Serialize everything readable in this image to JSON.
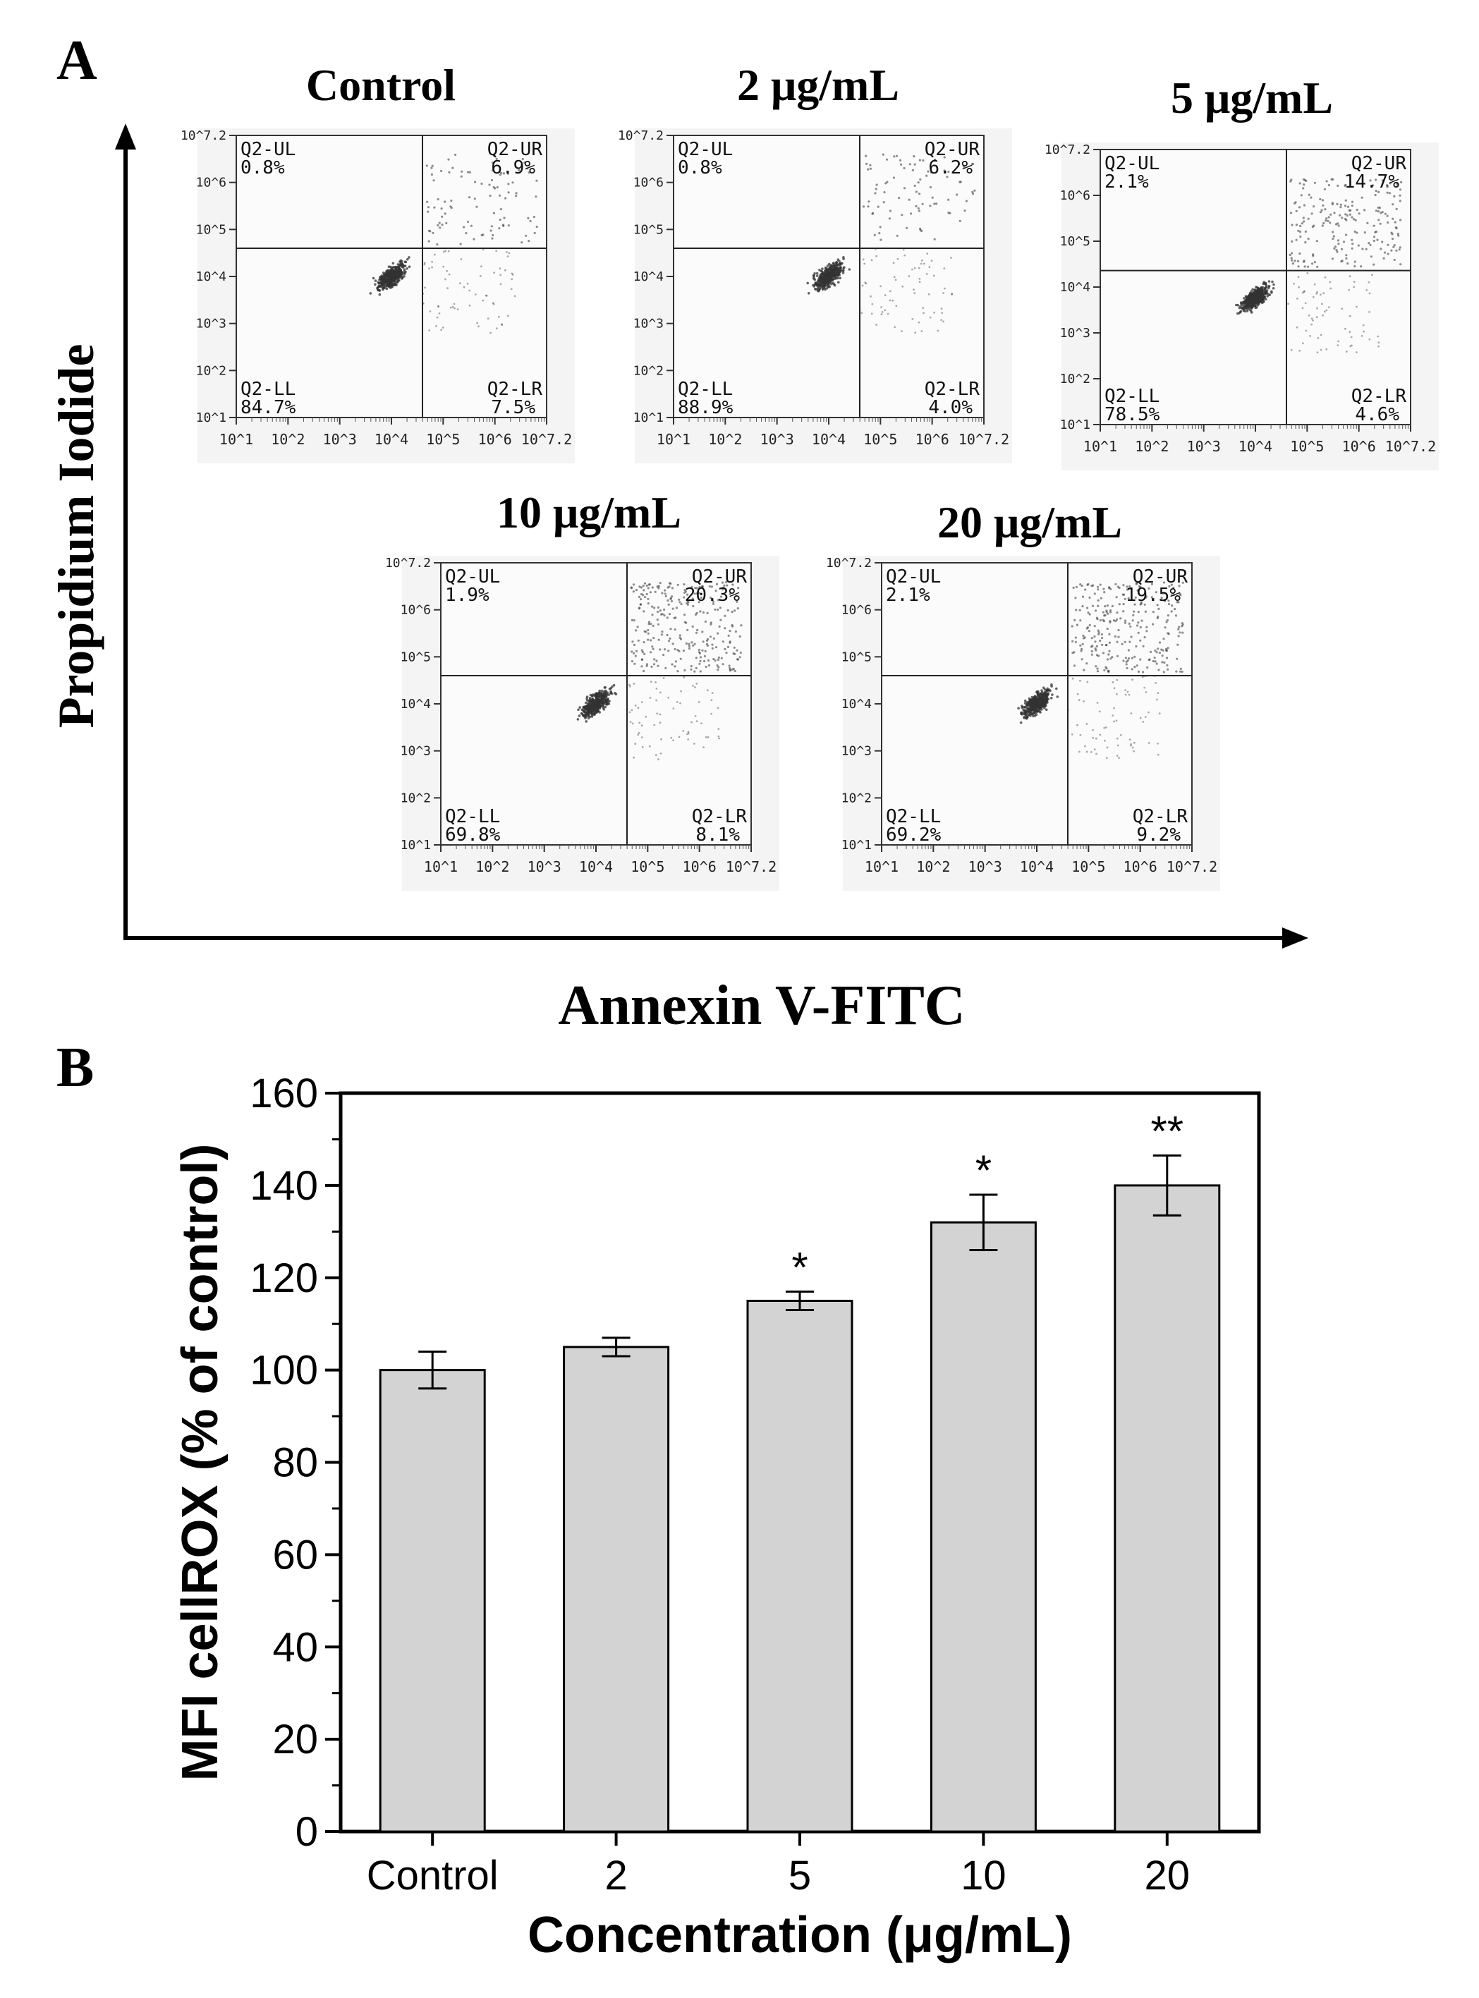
{
  "panel_a": {
    "label": "A",
    "y_axis_label": "Propidium Iodide",
    "x_axis_label": "Annexin V-FITC",
    "quadrant_labels": {
      "ul": "Q2-UL",
      "ur": "Q2-UR",
      "ll": "Q2-LL",
      "lr": "Q2-LR"
    },
    "tick_labels": [
      "10^1",
      "10^2",
      "10^3",
      "10^4",
      "10^5",
      "10^6",
      "10^7.2"
    ],
    "plots": [
      {
        "title": "Control",
        "ul": "0.8%",
        "ur": "6.9%",
        "ll": "84.7%",
        "lr": "7.5%"
      },
      {
        "title": "2 μg/mL",
        "ul": "0.8%",
        "ur": "6.2%",
        "ll": "88.9%",
        "lr": "4.0%"
      },
      {
        "title": "5 μg/mL",
        "ul": "2.1%",
        "ur": "14.7%",
        "ll": "78.5%",
        "lr": "4.6%"
      },
      {
        "title": "10 μg/mL",
        "ul": "1.9%",
        "ur": "20.3%",
        "ll": "69.8%",
        "lr": "8.1%"
      },
      {
        "title": "20 μg/mL",
        "ul": "2.1%",
        "ur": "19.5%",
        "ll": "69.2%",
        "lr": "9.2%"
      }
    ]
  },
  "panel_b": {
    "label": "B"
  },
  "chart_data": {
    "type": "bar",
    "title": "",
    "xlabel": "Concentration (μg/mL)",
    "ylabel": "MFI cellROX (% of control)",
    "categories": [
      "Control",
      "2",
      "5",
      "10",
      "20"
    ],
    "values": [
      100,
      105,
      115,
      132,
      140
    ],
    "errors": [
      4,
      2,
      2,
      6,
      6.5
    ],
    "significance": [
      "",
      "",
      "*",
      "*",
      "**"
    ],
    "ylim": [
      0,
      160
    ],
    "yticks": [
      0,
      20,
      40,
      60,
      80,
      100,
      120,
      140,
      160
    ],
    "grid": false,
    "bar_color": "#d3d3d3"
  }
}
